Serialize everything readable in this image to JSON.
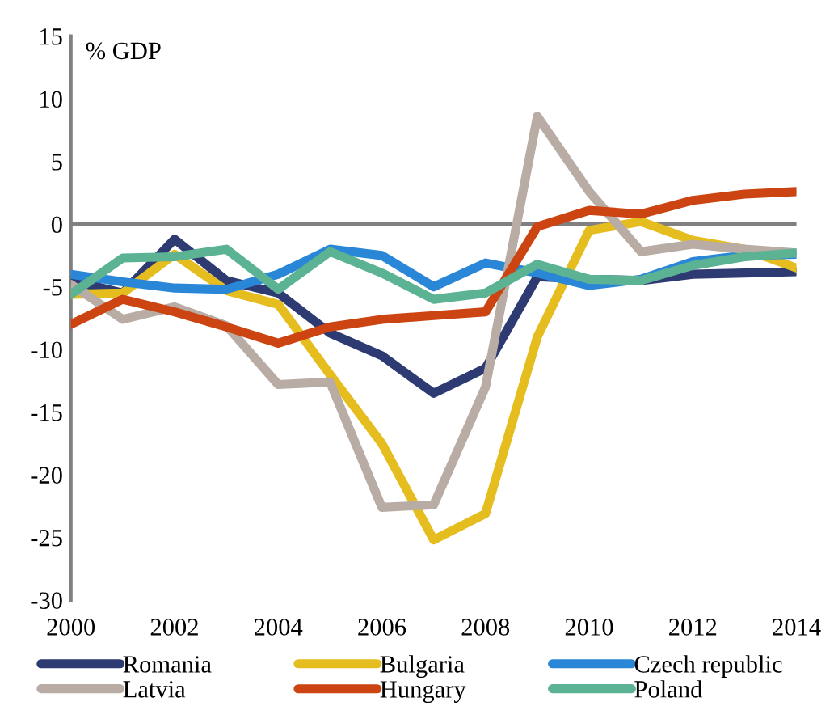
{
  "chart_data": {
    "type": "line",
    "ylabel": "% GDP",
    "x": [
      2000,
      2001,
      2002,
      2003,
      2004,
      2005,
      2006,
      2007,
      2008,
      2009,
      2010,
      2011,
      2012,
      2013,
      2014
    ],
    "xlim": [
      2000,
      2014
    ],
    "xticks": [
      2000,
      2002,
      2004,
      2006,
      2008,
      2010,
      2012,
      2014
    ],
    "ylim": [
      -30,
      15
    ],
    "yticks": [
      -30,
      -25,
      -20,
      -15,
      -10,
      -5,
      0,
      5,
      10,
      15
    ],
    "grid": false,
    "legend": "bottom",
    "marker": "none",
    "line_style": "solid",
    "ref_lines": [
      {
        "axis": "y",
        "value": 0,
        "color": "#808080"
      }
    ],
    "series": [
      {
        "name": "Romania",
        "color": "#2e3a72",
        "values": [
          -4.5,
          -5.5,
          -1.2,
          -4.5,
          -5.5,
          -8.7,
          -10.5,
          -13.5,
          -11.5,
          -4.2,
          -4.4,
          -4.5,
          -4.0,
          -3.9,
          -3.8
        ]
      },
      {
        "name": "Bulgaria",
        "color": "#e5bd1e",
        "values": [
          -5.6,
          -5.5,
          -2.4,
          -5.3,
          -6.4,
          -12.0,
          -17.5,
          -25.2,
          -23.1,
          -9.0,
          -0.5,
          0.2,
          -1.3,
          -2.0,
          -3.5
        ]
      },
      {
        "name": "Czech republic",
        "color": "#2a87d8",
        "values": [
          -4.0,
          -4.6,
          -5.1,
          -5.2,
          -4.0,
          -2.0,
          -2.5,
          -5.0,
          -3.1,
          -3.9,
          -4.9,
          -4.4,
          -3.0,
          -2.5,
          -2.4
        ]
      },
      {
        "name": "Latvia",
        "color": "#b8aca4",
        "values": [
          -4.8,
          -7.6,
          -6.6,
          -8.1,
          -12.8,
          -12.6,
          -22.6,
          -22.4,
          -13.0,
          8.6,
          2.6,
          -2.2,
          -1.6,
          -2.0,
          -2.3
        ]
      },
      {
        "name": "Hungary",
        "color": "#cc4412",
        "values": [
          -8.0,
          -6.0,
          -7.0,
          -8.2,
          -9.5,
          -8.2,
          -7.6,
          -7.3,
          -7.0,
          -0.2,
          1.1,
          0.8,
          1.9,
          2.4,
          2.6
        ]
      },
      {
        "name": "Poland",
        "color": "#5bb394",
        "values": [
          -5.6,
          -2.7,
          -2.6,
          -2.0,
          -5.2,
          -2.2,
          -3.9,
          -6.0,
          -5.5,
          -3.2,
          -4.4,
          -4.5,
          -3.3,
          -2.6,
          -2.3
        ]
      }
    ]
  }
}
